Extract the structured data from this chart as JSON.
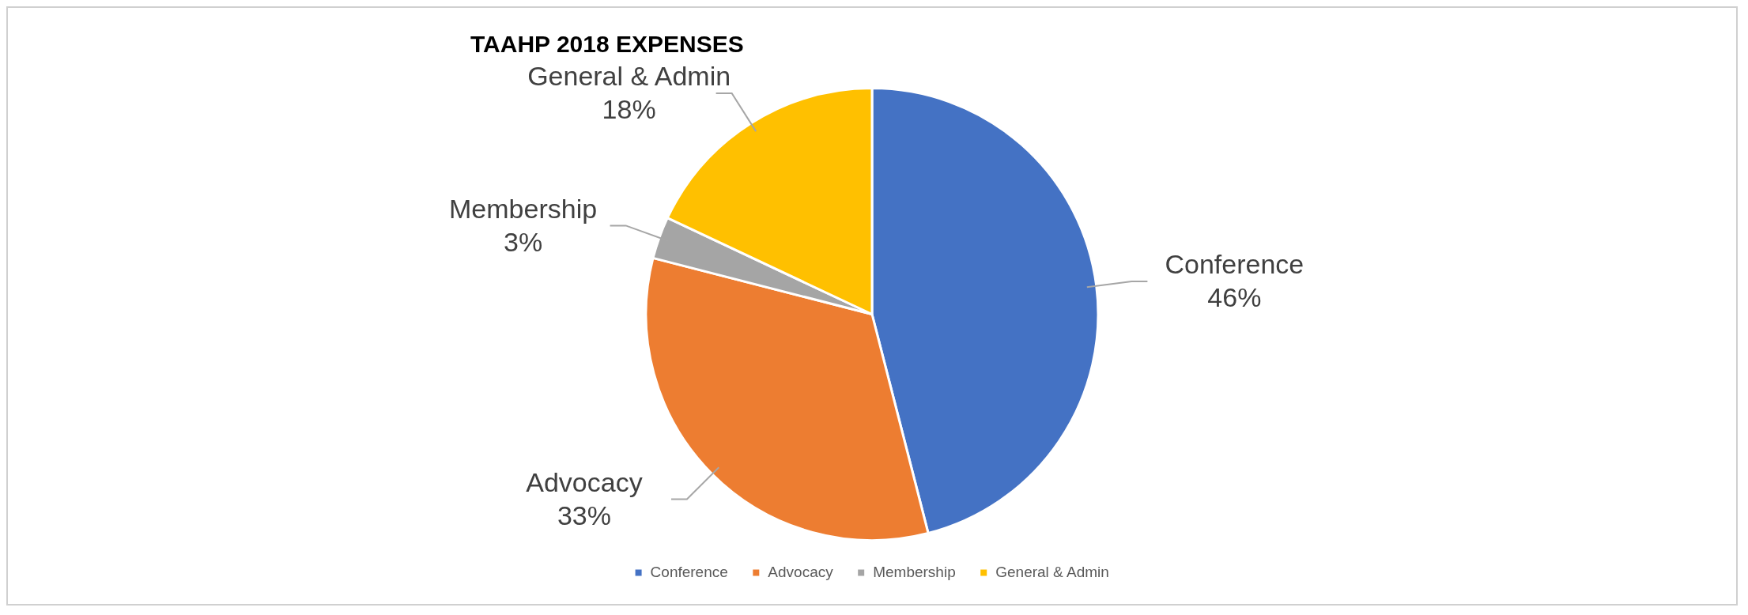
{
  "chart_data": {
    "type": "pie",
    "title": "TAAHP 2018 EXPENSES",
    "categories": [
      "Conference",
      "Advocacy",
      "Membership",
      "General & Admin"
    ],
    "values": [
      46,
      33,
      3,
      18
    ],
    "colors": [
      "#4472c4",
      "#ed7d31",
      "#a5a5a5",
      "#ffc000"
    ],
    "value_labels": [
      "46%",
      "33%",
      "3%",
      "18%"
    ],
    "legend": "bottom"
  }
}
